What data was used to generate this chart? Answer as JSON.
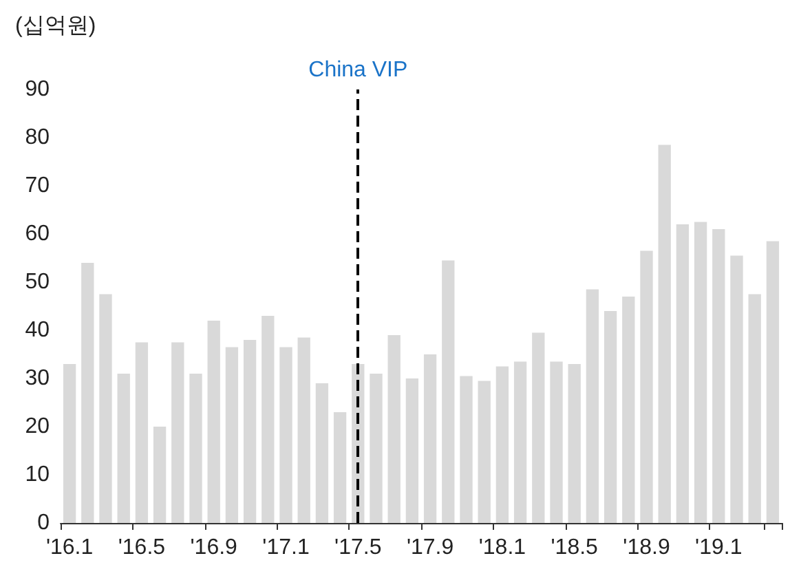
{
  "chart_data": {
    "type": "bar",
    "ylabel": "(십억원)",
    "categories": [
      "'16.1",
      null,
      null,
      null,
      "'16.5",
      null,
      null,
      null,
      "'16.9",
      null,
      null,
      null,
      "'17.1",
      null,
      null,
      null,
      "'17.5",
      null,
      null,
      null,
      "'17.9",
      null,
      null,
      null,
      "'18.1",
      null,
      null,
      null,
      "'18.5",
      null,
      null,
      null,
      "'18.9",
      null,
      null,
      null,
      "'19.1",
      null,
      null,
      null
    ],
    "values": [
      33,
      54,
      47.5,
      31,
      37.5,
      20,
      37.5,
      31,
      42,
      36.5,
      38,
      43,
      36.5,
      38.5,
      29,
      23,
      33,
      31,
      39,
      30,
      35,
      54.5,
      30.5,
      29.5,
      32.5,
      33.5,
      39.5,
      33.5,
      33,
      48.5,
      44,
      47,
      56.5,
      78.5,
      62,
      62.5,
      61,
      55.5,
      47.5,
      58.5
    ],
    "color": "#d9d9d9",
    "ylim": [
      0,
      90
    ],
    "yticks": [
      0,
      10,
      20,
      30,
      40,
      50,
      60,
      70,
      80,
      90
    ],
    "ref_lines": [
      {
        "axis": "x",
        "value": "'17.5",
        "label": "China VIP",
        "color": "#000000",
        "line_style": "dashed"
      }
    ],
    "grid": false
  }
}
